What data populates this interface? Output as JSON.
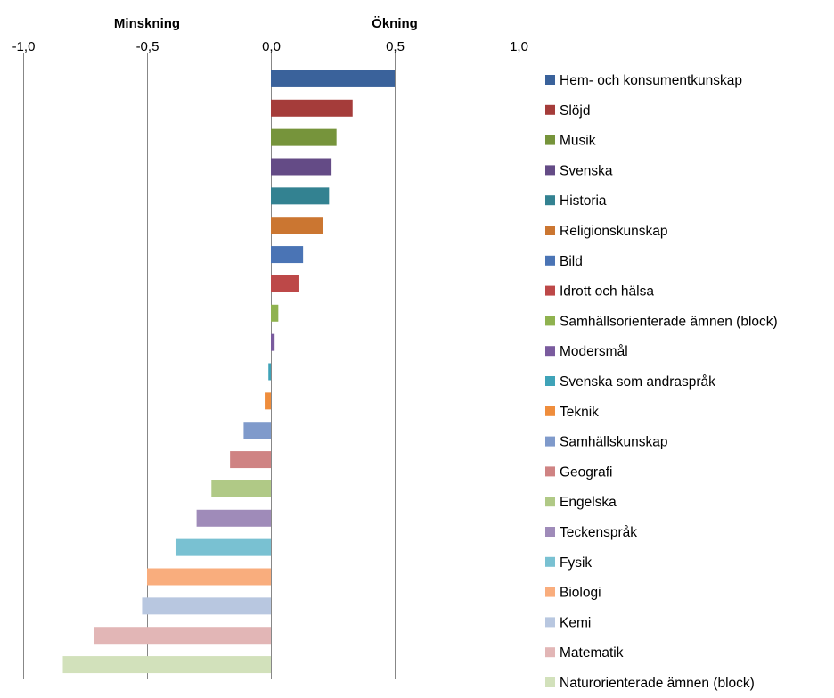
{
  "chart_data": {
    "type": "bar",
    "orientation": "horizontal",
    "direction_labels": {
      "negative": "Minskning",
      "positive": "Ökning"
    },
    "x_ticks": [
      "-1,0",
      "-0,5",
      "0,0",
      "0,5",
      "1,0"
    ],
    "xlim": [
      -1.0,
      1.0
    ],
    "grid": "vertical",
    "legend_position": "right",
    "series": [
      {
        "name": "Hem- och konsumentkunskap",
        "value": 0.5,
        "color": "#3a629b"
      },
      {
        "name": "Slöjd",
        "value": 0.33,
        "color": "#a53c3a"
      },
      {
        "name": "Musik",
        "value": 0.265,
        "color": "#76943b"
      },
      {
        "name": "Svenska",
        "value": 0.245,
        "color": "#644b86"
      },
      {
        "name": "Historia",
        "value": 0.235,
        "color": "#338291"
      },
      {
        "name": "Religionskunskap",
        "value": 0.21,
        "color": "#cb7631"
      },
      {
        "name": "Bild",
        "value": 0.13,
        "color": "#4a74b5"
      },
      {
        "name": "Idrott och hälsa",
        "value": 0.115,
        "color": "#bd4848"
      },
      {
        "name": "Samhällsorienterade ämnen (block)",
        "value": 0.03,
        "color": "#8fb24f"
      },
      {
        "name": "Modersmål",
        "value": 0.015,
        "color": "#7a5b9e"
      },
      {
        "name": "Svenska som andraspråk",
        "value": -0.01,
        "color": "#3fa3b8"
      },
      {
        "name": "Teknik",
        "value": -0.025,
        "color": "#ef8d3c"
      },
      {
        "name": "Samhällskunskap",
        "value": -0.11,
        "color": "#7f9acb"
      },
      {
        "name": "Geografi",
        "value": -0.165,
        "color": "#cf8383"
      },
      {
        "name": "Engelska",
        "value": -0.24,
        "color": "#b0c986"
      },
      {
        "name": "Teckenspråk",
        "value": -0.3,
        "color": "#9f8bb9"
      },
      {
        "name": "Fysik",
        "value": -0.385,
        "color": "#79c1d2"
      },
      {
        "name": "Biologi",
        "value": -0.5,
        "color": "#f9ad7d"
      },
      {
        "name": "Kemi",
        "value": -0.52,
        "color": "#b8c7e0"
      },
      {
        "name": "Matematik",
        "value": -0.715,
        "color": "#e2b6b6"
      },
      {
        "name": "Naturorienterade ämnen (block)",
        "value": -0.84,
        "color": "#d2e1bb"
      }
    ]
  }
}
